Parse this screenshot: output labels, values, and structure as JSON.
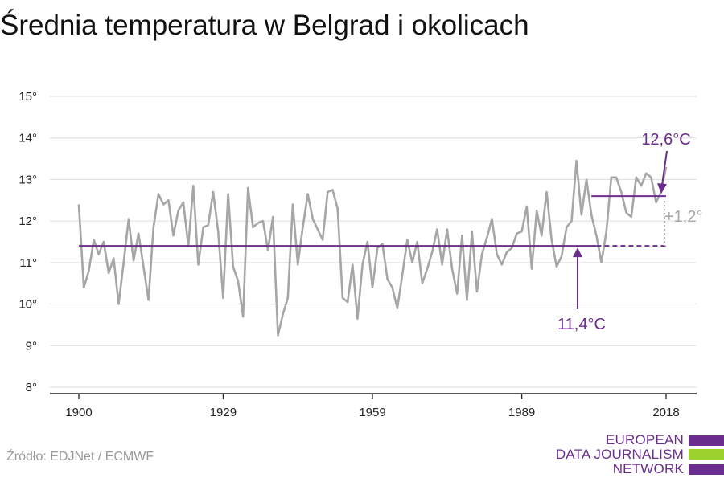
{
  "title": "Średnia temperatura w Belgrad i okolicach",
  "source": "Źródło: EDJNet / ECMWF",
  "logo": {
    "lines": [
      "EUROPEAN",
      "DATA JOURNALISM",
      "NETWORK"
    ],
    "text_color": "#6b2d8e",
    "bar_colors": [
      "#6b2d8e",
      "#9bd22e",
      "#6b2d8e"
    ]
  },
  "colors": {
    "series": "#a6a6a6",
    "reference": "#6b2d8e",
    "difference": "#a6a6a6",
    "grid": "#dddddd",
    "axis": "#222222"
  },
  "chart_data": {
    "type": "line",
    "title": "Średnia temperatura w Belgrad i okolicach",
    "xlabel": "",
    "ylabel": "",
    "xlim": [
      1900,
      2018
    ],
    "ylim": [
      8,
      15
    ],
    "x_ticks": [
      1900,
      1929,
      1959,
      1989,
      2018
    ],
    "x_tick_labels": [
      "1900",
      "1929",
      "1959",
      "1989",
      "2018"
    ],
    "y_ticks": [
      8,
      9,
      10,
      11,
      12,
      13,
      14,
      15
    ],
    "y_tick_labels": [
      "8°",
      "9°",
      "10°",
      "11°",
      "12°",
      "13°",
      "14°",
      "15°"
    ],
    "grid": true,
    "x": [
      1900,
      1901,
      1902,
      1903,
      1904,
      1905,
      1906,
      1907,
      1908,
      1909,
      1910,
      1911,
      1912,
      1913,
      1914,
      1915,
      1916,
      1917,
      1918,
      1919,
      1920,
      1921,
      1922,
      1923,
      1924,
      1925,
      1926,
      1927,
      1928,
      1929,
      1930,
      1931,
      1932,
      1933,
      1934,
      1935,
      1936,
      1937,
      1938,
      1939,
      1940,
      1941,
      1942,
      1943,
      1944,
      1945,
      1946,
      1947,
      1948,
      1949,
      1950,
      1951,
      1952,
      1953,
      1954,
      1955,
      1956,
      1957,
      1958,
      1959,
      1960,
      1961,
      1962,
      1963,
      1964,
      1965,
      1966,
      1967,
      1968,
      1969,
      1970,
      1971,
      1972,
      1973,
      1974,
      1975,
      1976,
      1977,
      1978,
      1979,
      1980,
      1981,
      1982,
      1983,
      1984,
      1985,
      1986,
      1987,
      1988,
      1989,
      1990,
      1991,
      1992,
      1993,
      1994,
      1995,
      1996,
      1997,
      1998,
      1999,
      2000,
      2001,
      2002,
      2003,
      2004,
      2005,
      2006,
      2007,
      2008,
      2009,
      2010,
      2011,
      2012,
      2013,
      2014,
      2015,
      2016,
      2017,
      2018
    ],
    "series": [
      {
        "values": [
          12.4,
          10.4,
          10.8,
          11.55,
          11.2,
          11.5,
          10.75,
          11.1,
          10.0,
          11.0,
          12.05,
          11.05,
          11.7,
          10.9,
          10.1,
          11.85,
          12.65,
          12.4,
          12.5,
          11.65,
          12.25,
          12.45,
          11.4,
          12.85,
          10.95,
          11.85,
          11.9,
          12.7,
          11.75,
          10.15,
          12.65,
          10.9,
          10.55,
          9.7,
          12.8,
          11.85,
          11.95,
          12.0,
          11.3,
          12.1,
          9.25,
          9.75,
          10.15,
          12.4,
          10.95,
          11.85,
          12.65,
          12.05,
          11.8,
          11.55,
          12.7,
          12.75,
          12.3,
          10.15,
          10.05,
          10.95,
          9.65,
          10.95,
          11.5,
          10.4,
          11.35,
          11.45,
          10.6,
          10.4,
          9.9,
          10.7,
          11.55,
          11.0,
          11.5,
          10.5,
          10.85,
          11.25,
          11.8,
          10.95,
          11.8,
          10.85,
          10.25,
          11.65,
          10.1,
          11.75,
          10.3,
          11.2,
          11.6,
          12.05,
          11.2,
          10.95,
          11.25,
          11.35,
          11.7,
          11.75,
          12.35,
          10.85,
          12.25,
          11.65,
          12.7,
          11.55,
          10.9,
          11.15,
          11.85,
          12.0,
          13.45,
          12.15,
          13.0,
          12.15,
          11.65,
          11.0,
          11.75,
          13.05,
          13.05,
          12.7,
          12.2,
          12.1,
          13.05,
          12.85,
          13.15,
          13.05,
          12.45,
          12.7,
          13.3
        ]
      }
    ],
    "reference_lines": [
      {
        "label": "11,4°C",
        "value": 11.4,
        "from": 1900,
        "to": 2018,
        "solid_to": 2004
      },
      {
        "label": "12,6°C",
        "value": 12.6,
        "from": 2003,
        "to": 2018
      }
    ],
    "difference_label": "+1,2°"
  }
}
